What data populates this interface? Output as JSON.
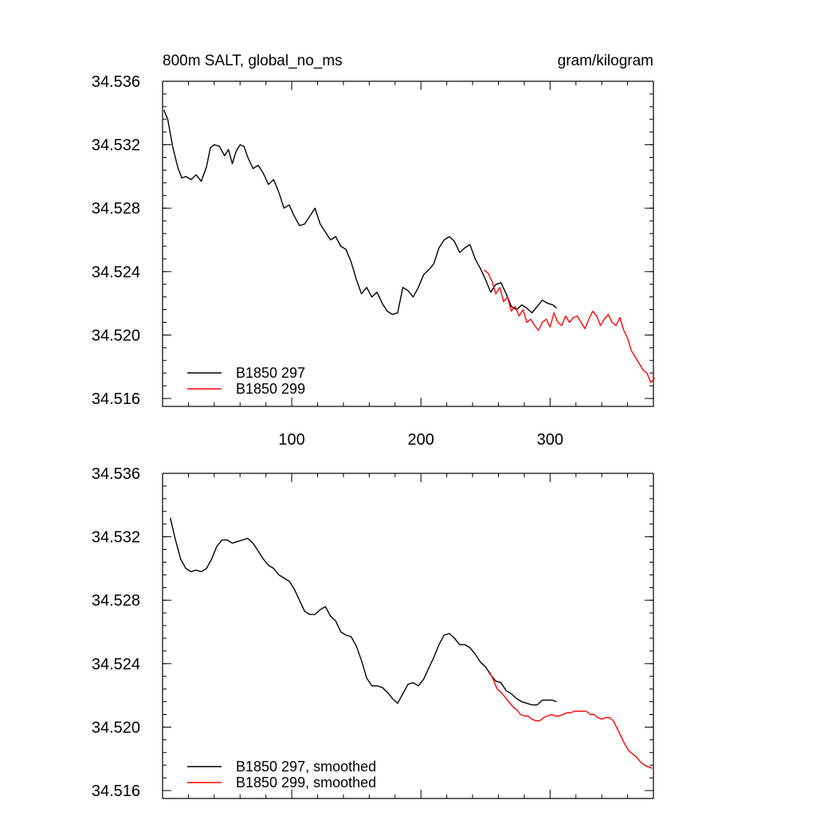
{
  "chart_data": [
    {
      "type": "line",
      "title_left": "800m SALT, global_no_ms",
      "title_right": "gram/kilogram",
      "xlim": [
        0,
        380
      ],
      "ylim": [
        34.5155,
        34.536
      ],
      "xticks": [
        100,
        200,
        300
      ],
      "xtick_labels": [
        "100",
        "200",
        "300"
      ],
      "show_x_tick_labels": true,
      "yticks": [
        34.516,
        34.52,
        34.524,
        34.528,
        34.532,
        34.536
      ],
      "ytick_labels": [
        "34.516",
        "34.520",
        "34.524",
        "34.528",
        "34.532",
        "34.536"
      ],
      "series": [
        {
          "name": "B1850 297",
          "color": "#000000",
          "x": [
            1,
            4,
            8,
            12,
            15,
            18,
            22,
            26,
            30,
            34,
            37,
            40,
            44,
            48,
            51,
            54,
            57,
            60,
            63,
            66,
            70,
            74,
            78,
            82,
            86,
            90,
            94,
            98,
            102,
            106,
            110,
            114,
            118,
            122,
            126,
            130,
            134,
            138,
            142,
            146,
            150,
            154,
            158,
            162,
            166,
            170,
            174,
            178,
            182,
            186,
            190,
            194,
            198,
            202,
            206,
            210,
            214,
            218,
            222,
            226,
            230,
            234,
            238,
            242,
            246,
            250,
            254,
            258,
            262,
            266,
            270,
            274,
            278,
            282,
            286,
            290,
            294,
            298,
            302,
            305
          ],
          "y": [
            34.5342,
            34.5336,
            34.5318,
            34.5305,
            34.5299,
            34.53,
            34.5298,
            34.5301,
            34.5297,
            34.5306,
            34.5318,
            34.532,
            34.5319,
            34.5313,
            34.5317,
            34.5308,
            34.5316,
            34.532,
            34.5319,
            34.5312,
            34.5305,
            34.5307,
            34.5302,
            34.5295,
            34.5298,
            34.529,
            34.528,
            34.5282,
            34.5275,
            34.5269,
            34.527,
            34.5275,
            34.528,
            34.527,
            34.5265,
            34.526,
            34.5262,
            34.5256,
            34.5254,
            34.5246,
            34.5235,
            34.5226,
            34.523,
            34.5224,
            34.5227,
            34.522,
            34.5215,
            34.5213,
            34.5214,
            34.523,
            34.5228,
            34.5224,
            34.523,
            34.5238,
            34.5241,
            34.5245,
            34.5255,
            34.526,
            34.5262,
            34.5259,
            34.5252,
            34.5255,
            34.5257,
            34.5248,
            34.5242,
            34.5235,
            34.5227,
            34.5232,
            34.5233,
            34.5226,
            34.5218,
            34.5216,
            34.5219,
            34.5217,
            34.5214,
            34.5218,
            34.5222,
            34.522,
            34.5219,
            34.5217
          ]
        },
        {
          "name": "B1850 299",
          "color": "#ff0000",
          "x": [
            249,
            252,
            255,
            258,
            261,
            264,
            267,
            270,
            273,
            276,
            279,
            282,
            285,
            288,
            291,
            294,
            297,
            300,
            303,
            306,
            309,
            312,
            315,
            318,
            321,
            324,
            327,
            330,
            333,
            336,
            339,
            342,
            345,
            348,
            351,
            354,
            357,
            360,
            363,
            366,
            369,
            372,
            375,
            378,
            381
          ],
          "y": [
            34.5241,
            34.5239,
            34.5234,
            34.5226,
            34.523,
            34.5221,
            34.5224,
            34.5215,
            34.5218,
            34.5212,
            34.5216,
            34.5208,
            34.521,
            34.5206,
            34.5203,
            34.5208,
            34.521,
            34.5205,
            34.5214,
            34.5208,
            34.5206,
            34.5212,
            34.5208,
            34.5211,
            34.5212,
            34.5208,
            34.5204,
            34.521,
            34.5215,
            34.5212,
            34.5206,
            34.521,
            34.5213,
            34.5208,
            34.5206,
            34.5211,
            34.5203,
            34.5198,
            34.519,
            34.5186,
            34.5182,
            34.5178,
            34.5176,
            34.517,
            34.5173
          ]
        }
      ],
      "legend": [
        "B1850 297",
        "B1850 299"
      ],
      "legend_position": "bottom-left"
    },
    {
      "type": "line",
      "xlim": [
        0,
        380
      ],
      "ylim": [
        34.5155,
        34.536
      ],
      "xticks": [
        100,
        200,
        300
      ],
      "xtick_labels": [],
      "show_x_tick_labels": false,
      "yticks": [
        34.516,
        34.52,
        34.524,
        34.528,
        34.532,
        34.536
      ],
      "ytick_labels": [
        "34.516",
        "34.520",
        "34.524",
        "34.528",
        "34.532",
        "34.536"
      ],
      "series": [
        {
          "name": "B1850 297, smoothed",
          "color": "#000000",
          "x": [
            6,
            10,
            14,
            18,
            22,
            26,
            30,
            34,
            38,
            42,
            46,
            50,
            54,
            58,
            62,
            66,
            70,
            74,
            78,
            82,
            86,
            90,
            94,
            98,
            102,
            106,
            110,
            114,
            118,
            122,
            126,
            130,
            134,
            138,
            142,
            146,
            150,
            154,
            158,
            162,
            166,
            170,
            174,
            178,
            182,
            186,
            190,
            194,
            198,
            202,
            206,
            210,
            214,
            218,
            222,
            226,
            230,
            234,
            238,
            242,
            246,
            250,
            254,
            258,
            262,
            266,
            270,
            274,
            278,
            282,
            286,
            290,
            294,
            298,
            302,
            305
          ],
          "y": [
            34.5332,
            34.5318,
            34.5306,
            34.53,
            34.5298,
            34.5299,
            34.5298,
            34.53,
            34.5306,
            34.5314,
            34.5318,
            34.5318,
            34.5316,
            34.5317,
            34.5318,
            34.5319,
            34.5316,
            34.5311,
            34.5306,
            34.5302,
            34.53,
            34.5296,
            34.5294,
            34.5292,
            34.5287,
            34.528,
            34.5273,
            34.5271,
            34.5271,
            34.5274,
            34.5276,
            34.527,
            34.5267,
            34.526,
            34.5258,
            34.5257,
            34.5251,
            34.5242,
            34.5231,
            34.5226,
            34.5226,
            34.5225,
            34.5222,
            34.5218,
            34.5215,
            34.5221,
            34.5227,
            34.5228,
            34.5226,
            34.523,
            34.5237,
            34.5244,
            34.5252,
            34.5258,
            34.5259,
            34.5256,
            34.5252,
            34.5252,
            34.525,
            34.5246,
            34.5241,
            34.5238,
            34.5233,
            34.5229,
            34.5228,
            34.5223,
            34.5221,
            34.5218,
            34.5216,
            34.5215,
            34.5214,
            34.5214,
            34.5217,
            34.5217,
            34.5217,
            34.5216
          ]
        },
        {
          "name": "B1850 299, smoothed",
          "color": "#ff0000",
          "x": [
            253,
            256,
            259,
            262,
            265,
            268,
            271,
            274,
            277,
            280,
            283,
            286,
            289,
            292,
            295,
            298,
            301,
            304,
            307,
            310,
            313,
            316,
            319,
            322,
            325,
            328,
            331,
            334,
            337,
            340,
            343,
            346,
            349,
            352,
            355,
            358,
            361,
            364,
            367,
            370,
            373,
            376,
            379
          ],
          "y": [
            34.5235,
            34.523,
            34.5224,
            34.5222,
            34.5219,
            34.5216,
            34.5213,
            34.5211,
            34.5208,
            34.5207,
            34.5207,
            34.5205,
            34.5204,
            34.5204,
            34.5206,
            34.5207,
            34.5208,
            34.5207,
            34.5207,
            34.5208,
            34.5209,
            34.5209,
            34.521,
            34.521,
            34.521,
            34.521,
            34.5208,
            34.5208,
            34.5206,
            34.5205,
            34.5206,
            34.5206,
            34.5204,
            34.5199,
            34.5194,
            34.5189,
            34.5185,
            34.5183,
            34.5181,
            34.5178,
            34.5176,
            34.5175,
            34.5174
          ]
        }
      ],
      "legend": [
        "B1850 297, smoothed",
        "B1850 299, smoothed"
      ],
      "legend_position": "bottom-left"
    }
  ]
}
